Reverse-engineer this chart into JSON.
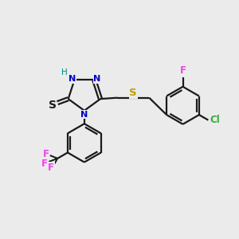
{
  "background_color": "#ebebeb",
  "bond_color": "#1a1a1a",
  "N_color": "#0000cc",
  "S_color": "#b8a000",
  "Cl_color": "#3aaa3a",
  "F_color": "#ee44ee",
  "H_color": "#008888",
  "figsize": [
    3.0,
    3.0
  ],
  "dpi": 100,
  "xlim": [
    0,
    10
  ],
  "ylim": [
    0,
    10
  ]
}
